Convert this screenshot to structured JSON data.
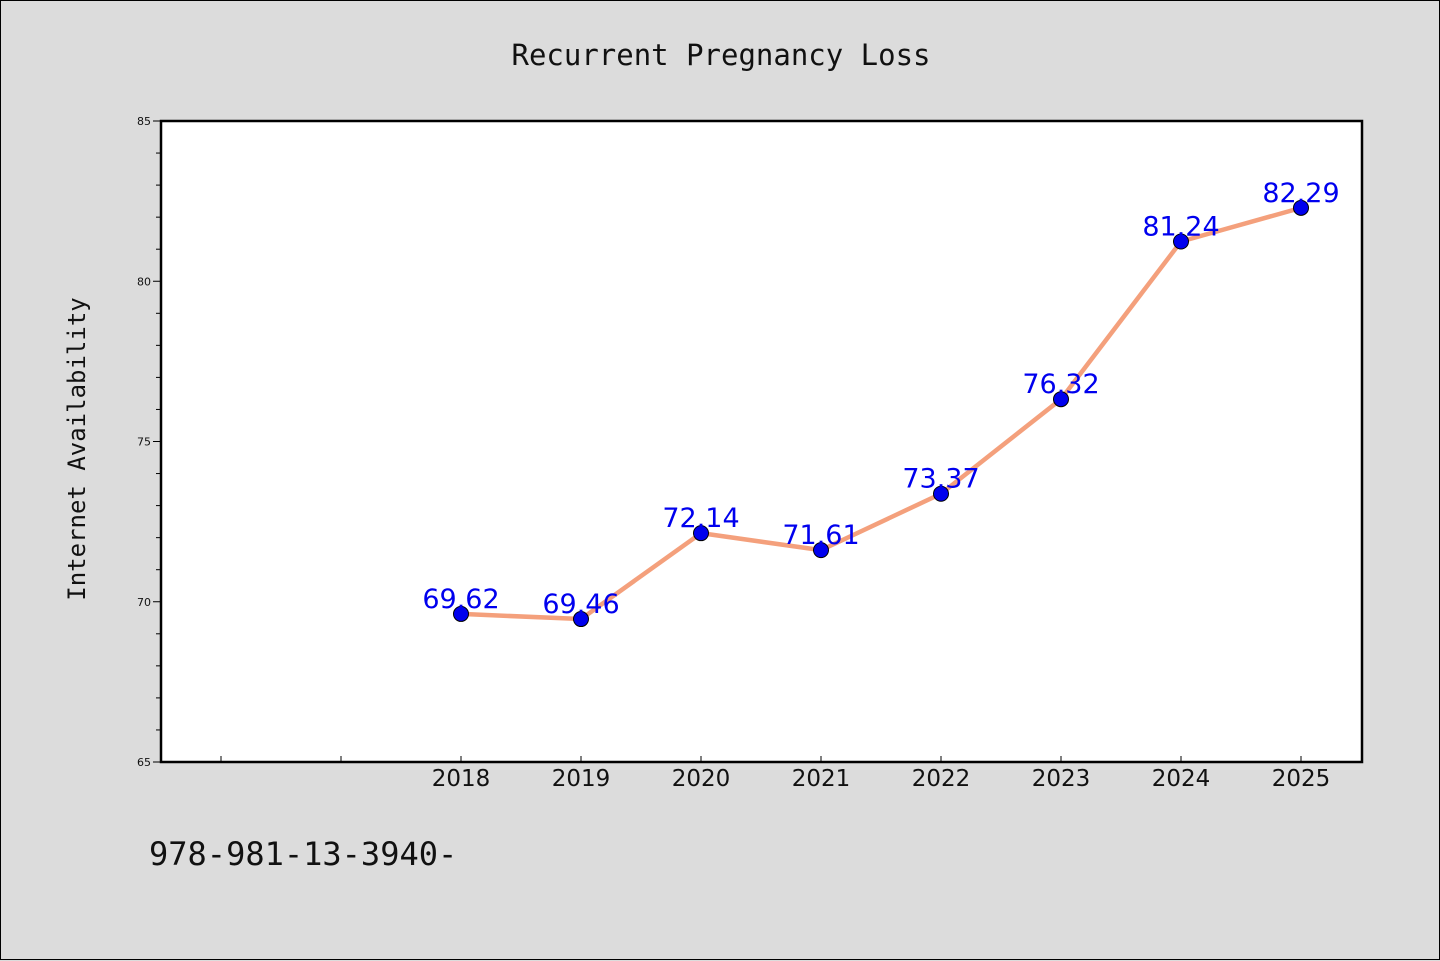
{
  "chart_data": {
    "type": "line",
    "title": "Recurrent Pregnancy Loss",
    "xlabel": "",
    "ylabel": "Internet Availability",
    "categories": [
      "2018",
      "2019",
      "2020",
      "2021",
      "2022",
      "2023",
      "2024",
      "2025"
    ],
    "series": [
      {
        "values": [
          69.62,
          69.46,
          72.14,
          71.61,
          73.37,
          76.32,
          81.24,
          82.29
        ],
        "labels": [
          "69.62",
          "69.46",
          "72.14",
          "71.61",
          "73.37",
          "76.32",
          "81.24",
          "82.29"
        ]
      }
    ],
    "ylim": [
      65,
      85
    ],
    "yticks": [
      "65",
      "70",
      "75",
      "80",
      "85"
    ],
    "grid": false,
    "legend": "none",
    "line_color": "#f4a07c",
    "marker_color": "#0000ee",
    "label_color": "#0000ee"
  },
  "footer": {
    "text": "978-981-13-3940-"
  }
}
